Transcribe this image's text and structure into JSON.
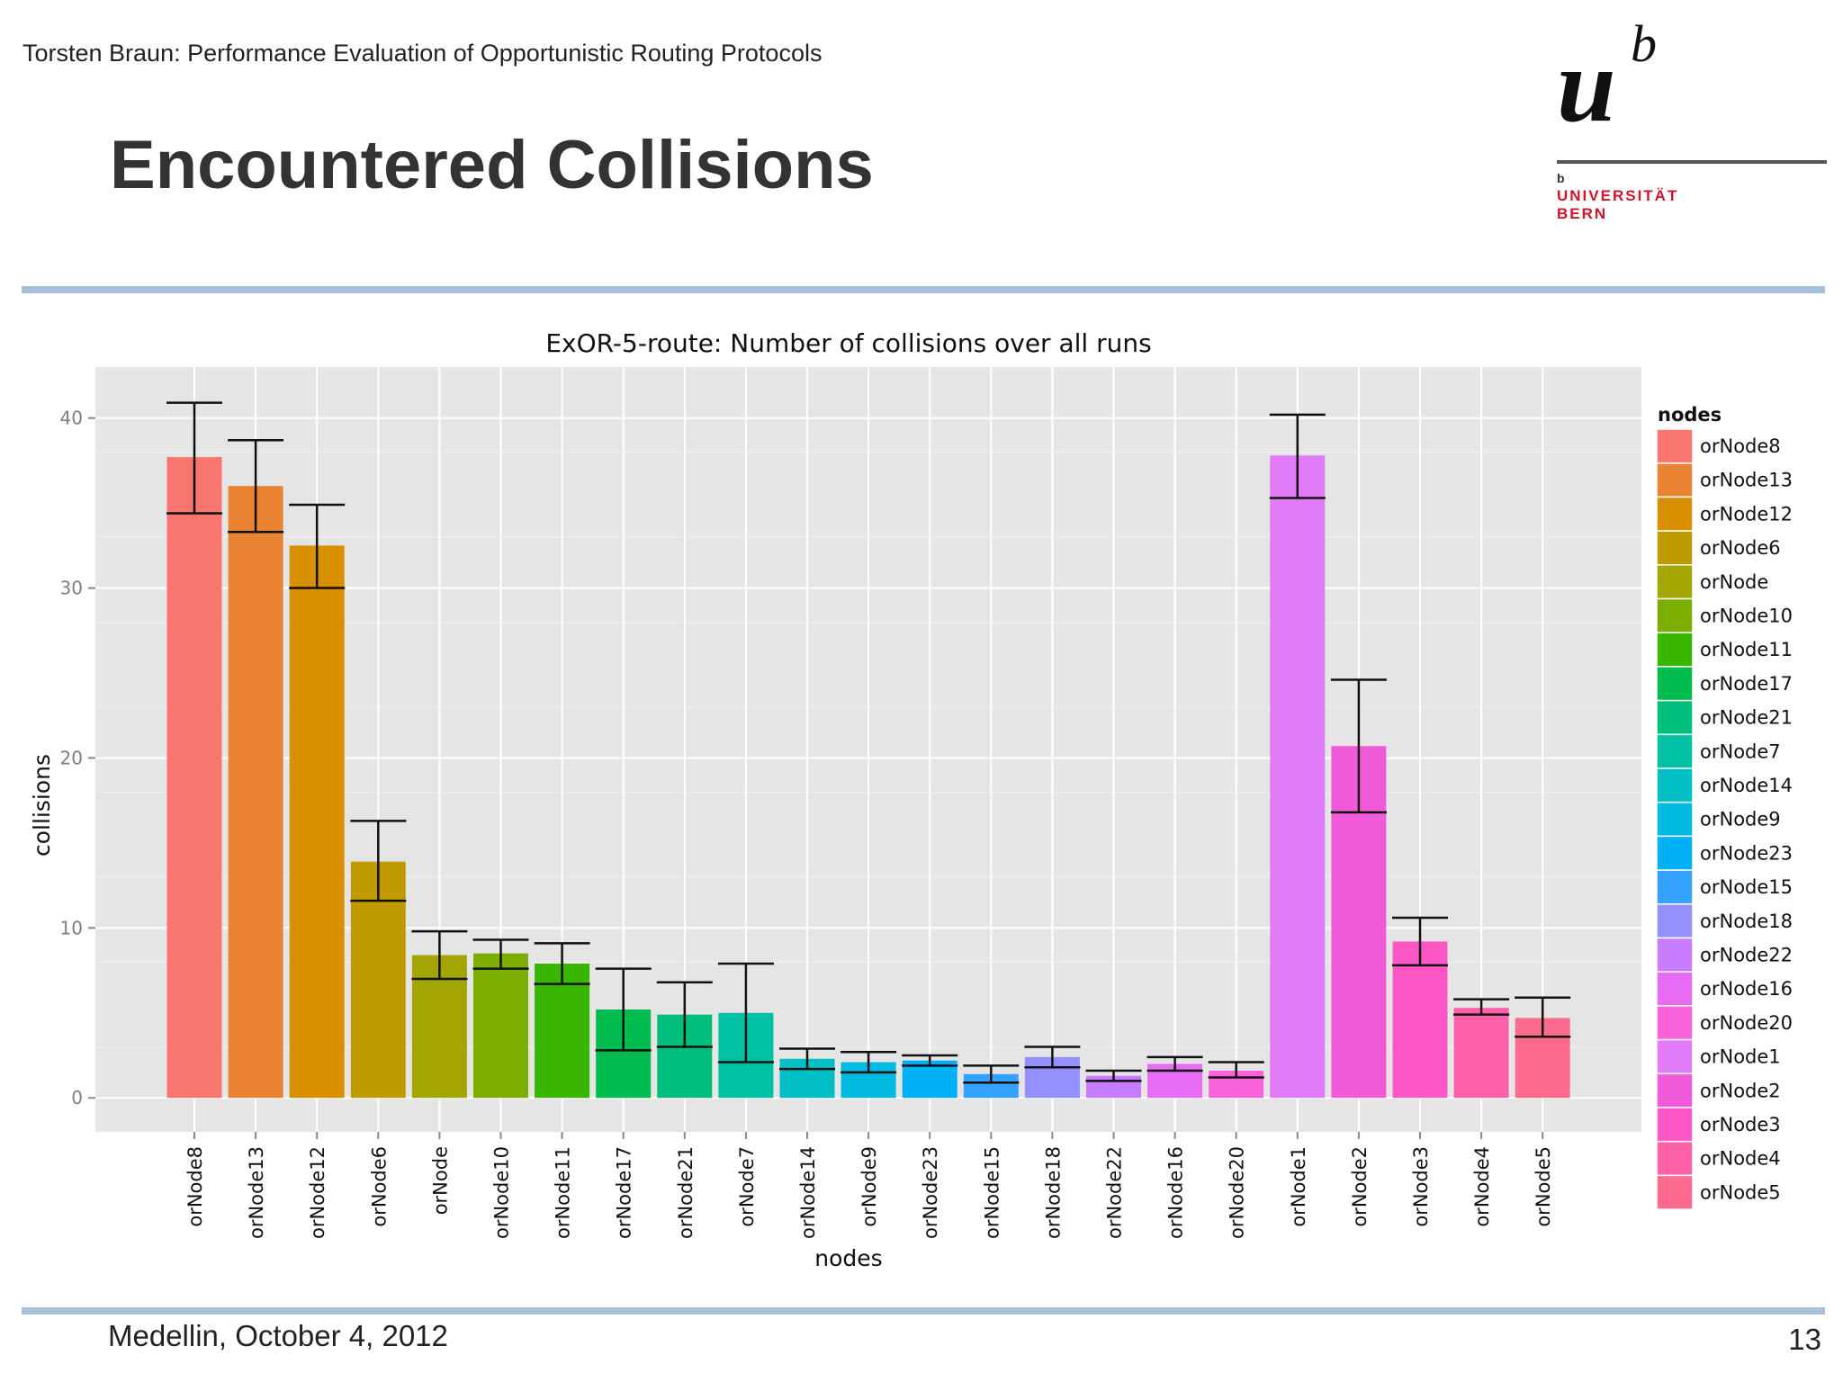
{
  "slide": {
    "header": "Torsten Braun: Performance Evaluation of Opportunistic Routing Protocols",
    "title": "Encountered Collisions",
    "footer_left": "Medellin, October 4, 2012",
    "page_number": "13",
    "rule_color": "#a7bfd9"
  },
  "logo": {
    "letter_u": "u",
    "letter_b": "b",
    "small_b": "b",
    "line1": "UNIVERSITÄT",
    "line2": "BERN",
    "accent_color": "#d0142c"
  },
  "chart_data": {
    "type": "bar",
    "title": "ExOR-5-route: Number of collisions over all runs",
    "xlabel": "nodes",
    "ylabel": "collisions",
    "ylim": [
      -2,
      43
    ],
    "yticks": [
      0,
      10,
      20,
      30,
      40
    ],
    "grid": true,
    "legend_title": "nodes",
    "legend_position": "right",
    "categories": [
      "orNode8",
      "orNode13",
      "orNode12",
      "orNode6",
      "orNode",
      "orNode10",
      "orNode11",
      "orNode17",
      "orNode21",
      "orNode7",
      "orNode14",
      "orNode9",
      "orNode23",
      "orNode15",
      "orNode18",
      "orNode22",
      "orNode16",
      "orNode20",
      "orNode1",
      "orNode2",
      "orNode3",
      "orNode4",
      "orNode5"
    ],
    "values": [
      37.7,
      36.0,
      32.5,
      13.9,
      8.4,
      8.5,
      7.9,
      5.2,
      4.9,
      5.0,
      2.3,
      2.1,
      2.2,
      1.4,
      2.4,
      1.3,
      2.0,
      1.6,
      37.8,
      20.7,
      9.2,
      5.3,
      4.7
    ],
    "err_low": [
      34.4,
      33.3,
      30.0,
      11.6,
      7.0,
      7.6,
      6.7,
      2.8,
      3.0,
      2.1,
      1.7,
      1.5,
      1.9,
      0.9,
      1.8,
      1.0,
      1.6,
      1.2,
      35.3,
      16.8,
      7.8,
      4.9,
      3.6
    ],
    "err_high": [
      40.9,
      38.7,
      34.9,
      16.3,
      9.8,
      9.3,
      9.1,
      7.6,
      6.8,
      7.9,
      2.9,
      2.7,
      2.5,
      1.9,
      3.0,
      1.6,
      2.4,
      2.1,
      40.2,
      24.6,
      10.6,
      5.8,
      5.9
    ],
    "colors": [
      "#f8766d",
      "#ea8331",
      "#d89000",
      "#c09b00",
      "#a3a500",
      "#7cae00",
      "#39b600",
      "#00bb4e",
      "#00bf7d",
      "#00c1a3",
      "#00bfc4",
      "#00bae0",
      "#00b0f6",
      "#35a2ff",
      "#9590ff",
      "#c77cff",
      "#e76bf3",
      "#fa62db",
      "#e27bf8",
      "#f15ad9",
      "#fe58c6",
      "#ff61a8",
      "#ff6b8e"
    ]
  }
}
